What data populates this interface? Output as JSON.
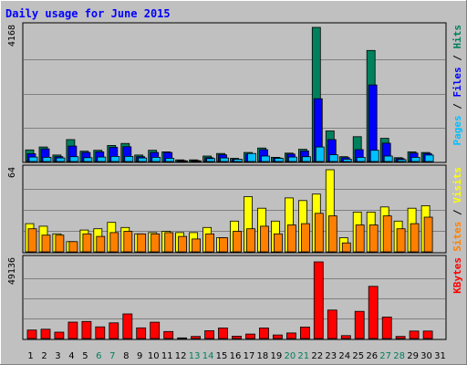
{
  "title": "Daily usage for June 2015",
  "colors": {
    "frame_bg": "#c0c0c0",
    "panel_bg": "#c0c0c0",
    "title": "#0000ff",
    "hits": "#00805c",
    "files": "#0000ff",
    "pages": "#00c0ff",
    "visits": "#ffff00",
    "sites": "#ff8000",
    "kbytes": "#ff0000",
    "weekend_label": "#00805c",
    "weekday_label": "#000000"
  },
  "chart_data": [
    {
      "type": "bar",
      "panel": "top",
      "ytick_label": "4168",
      "ymax": 4168,
      "legend": [
        {
          "name": "Pages",
          "color": "#00c0ff"
        },
        {
          "name": "Files",
          "color": "#0000ff"
        },
        {
          "name": "Hits",
          "color": "#00805c"
        }
      ],
      "categories": [
        "1",
        "2",
        "3",
        "4",
        "5",
        "6",
        "7",
        "8",
        "9",
        "10",
        "11",
        "12",
        "13",
        "14",
        "15",
        "16",
        "17",
        "18",
        "19",
        "20",
        "21",
        "22",
        "23",
        "24",
        "25",
        "26",
        "27",
        "28",
        "29",
        "30",
        "31"
      ],
      "series": [
        {
          "name": "Hits",
          "values": [
            360,
            450,
            200,
            680,
            320,
            350,
            500,
            560,
            200,
            350,
            300,
            50,
            50,
            170,
            250,
            100,
            280,
            420,
            130,
            260,
            380,
            4168,
            950,
            150,
            770,
            3450,
            720,
            120,
            300,
            280,
            0
          ]
        },
        {
          "name": "Files",
          "values": [
            240,
            390,
            150,
            480,
            280,
            300,
            440,
            460,
            150,
            280,
            280,
            30,
            30,
            120,
            210,
            70,
            230,
            370,
            110,
            230,
            330,
            1950,
            680,
            120,
            370,
            2380,
            570,
            90,
            260,
            250,
            0
          ]
        },
        {
          "name": "Pages",
          "values": [
            140,
            130,
            110,
            150,
            120,
            140,
            160,
            160,
            110,
            130,
            100,
            20,
            20,
            90,
            110,
            70,
            250,
            170,
            100,
            140,
            150,
            450,
            210,
            70,
            130,
            350,
            170,
            60,
            130,
            200,
            0
          ]
        }
      ]
    },
    {
      "type": "bar",
      "panel": "middle",
      "ytick_label": "64",
      "ymax": 64,
      "legend": [
        {
          "name": "Sites",
          "color": "#ff8000"
        },
        {
          "name": "Visits",
          "color": "#ffff00"
        }
      ],
      "categories": [
        "1",
        "2",
        "3",
        "4",
        "5",
        "6",
        "7",
        "8",
        "9",
        "10",
        "11",
        "12",
        "13",
        "14",
        "15",
        "16",
        "17",
        "18",
        "19",
        "20",
        "21",
        "22",
        "23",
        "24",
        "25",
        "26",
        "27",
        "28",
        "29",
        "30",
        "31"
      ],
      "series": [
        {
          "name": "Visits",
          "values": [
            22,
            20,
            14,
            8,
            17,
            18,
            23,
            19,
            14,
            15,
            16,
            15,
            15,
            19,
            11,
            24,
            43,
            34,
            24,
            42,
            40,
            45,
            64,
            11,
            31,
            31,
            35,
            24,
            34,
            36,
            0
          ]
        },
        {
          "name": "Sites",
          "values": [
            18,
            13,
            13,
            8,
            14,
            12,
            15,
            16,
            14,
            14,
            15,
            12,
            10,
            14,
            11,
            16,
            18,
            20,
            14,
            21,
            22,
            30,
            28,
            7,
            21,
            21,
            28,
            18,
            22,
            27,
            0
          ]
        }
      ]
    },
    {
      "type": "bar",
      "panel": "bottom",
      "ytick_label": "49136",
      "ymax": 49136,
      "legend": [
        {
          "name": "KBytes",
          "color": "#ff0000"
        }
      ],
      "categories": [
        "1",
        "2",
        "3",
        "4",
        "5",
        "6",
        "7",
        "8",
        "9",
        "10",
        "11",
        "12",
        "13",
        "14",
        "15",
        "16",
        "17",
        "18",
        "19",
        "20",
        "21",
        "22",
        "23",
        "24",
        "25",
        "26",
        "27",
        "28",
        "29",
        "30",
        "31"
      ],
      "series": [
        {
          "name": "KBytes",
          "values": [
            5300,
            5800,
            4000,
            10300,
            10700,
            7300,
            9800,
            15400,
            6700,
            10200,
            4400,
            400,
            1300,
            4900,
            6600,
            1500,
            2800,
            6600,
            2200,
            3500,
            7200,
            48000,
            17800,
            1800,
            17000,
            32700,
            13500,
            1300,
            4700,
            4700,
            0
          ]
        }
      ]
    }
  ],
  "x_labels": [
    {
      "label": "1",
      "weekend": false
    },
    {
      "label": "2",
      "weekend": false
    },
    {
      "label": "3",
      "weekend": false
    },
    {
      "label": "4",
      "weekend": false
    },
    {
      "label": "5",
      "weekend": false
    },
    {
      "label": "6",
      "weekend": true
    },
    {
      "label": "7",
      "weekend": true
    },
    {
      "label": "8",
      "weekend": false
    },
    {
      "label": "9",
      "weekend": false
    },
    {
      "label": "10",
      "weekend": false
    },
    {
      "label": "11",
      "weekend": false
    },
    {
      "label": "12",
      "weekend": false
    },
    {
      "label": "13",
      "weekend": true
    },
    {
      "label": "14",
      "weekend": true
    },
    {
      "label": "15",
      "weekend": false
    },
    {
      "label": "16",
      "weekend": false
    },
    {
      "label": "17",
      "weekend": false
    },
    {
      "label": "18",
      "weekend": false
    },
    {
      "label": "19",
      "weekend": false
    },
    {
      "label": "20",
      "weekend": true
    },
    {
      "label": "21",
      "weekend": true
    },
    {
      "label": "22",
      "weekend": false
    },
    {
      "label": "23",
      "weekend": false
    },
    {
      "label": "24",
      "weekend": false
    },
    {
      "label": "25",
      "weekend": false
    },
    {
      "label": "26",
      "weekend": false
    },
    {
      "label": "27",
      "weekend": true
    },
    {
      "label": "28",
      "weekend": true
    },
    {
      "label": "29",
      "weekend": false
    },
    {
      "label": "30",
      "weekend": false
    },
    {
      "label": "31",
      "weekend": false
    }
  ]
}
